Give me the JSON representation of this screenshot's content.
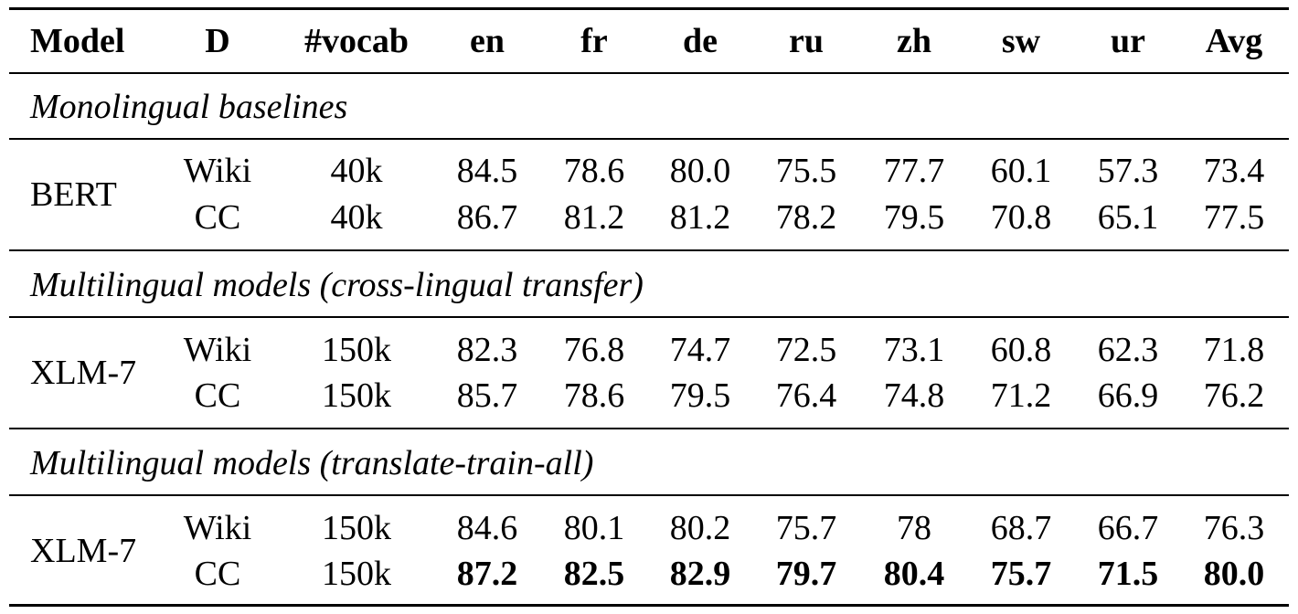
{
  "table": {
    "headers": [
      "Model",
      "D",
      "#vocab",
      "en",
      "fr",
      "de",
      "ru",
      "zh",
      "sw",
      "ur",
      "Avg"
    ],
    "groups": [
      {
        "title": "Monolingual baselines",
        "model": "BERT",
        "rows": [
          {
            "D": "Wiki",
            "vocab": "40k",
            "values": [
              "84.5",
              "78.6",
              "80.0",
              "75.5",
              "77.7",
              "60.1",
              "57.3",
              "73.4"
            ],
            "bold": false
          },
          {
            "D": "CC",
            "vocab": "40k",
            "values": [
              "86.7",
              "81.2",
              "81.2",
              "78.2",
              "79.5",
              "70.8",
              "65.1",
              "77.5"
            ],
            "bold": false
          }
        ]
      },
      {
        "title": "Multilingual models (cross-lingual transfer)",
        "model": "XLM-7",
        "rows": [
          {
            "D": "Wiki",
            "vocab": "150k",
            "values": [
              "82.3",
              "76.8",
              "74.7",
              "72.5",
              "73.1",
              "60.8",
              "62.3",
              "71.8"
            ],
            "bold": false
          },
          {
            "D": "CC",
            "vocab": "150k",
            "values": [
              "85.7",
              "78.6",
              "79.5",
              "76.4",
              "74.8",
              "71.2",
              "66.9",
              "76.2"
            ],
            "bold": false
          }
        ]
      },
      {
        "title": "Multilingual models (translate-train-all)",
        "model": "XLM-7",
        "rows": [
          {
            "D": "Wiki",
            "vocab": "150k",
            "values": [
              "84.6",
              "80.1",
              "80.2",
              "75.7",
              "78",
              "68.7",
              "66.7",
              "76.3"
            ],
            "bold": false
          },
          {
            "D": "CC",
            "vocab": "150k",
            "values": [
              "87.2",
              "82.5",
              "82.9",
              "79.7",
              "80.4",
              "75.7",
              "71.5",
              "80.0"
            ],
            "bold": true
          }
        ]
      }
    ]
  }
}
